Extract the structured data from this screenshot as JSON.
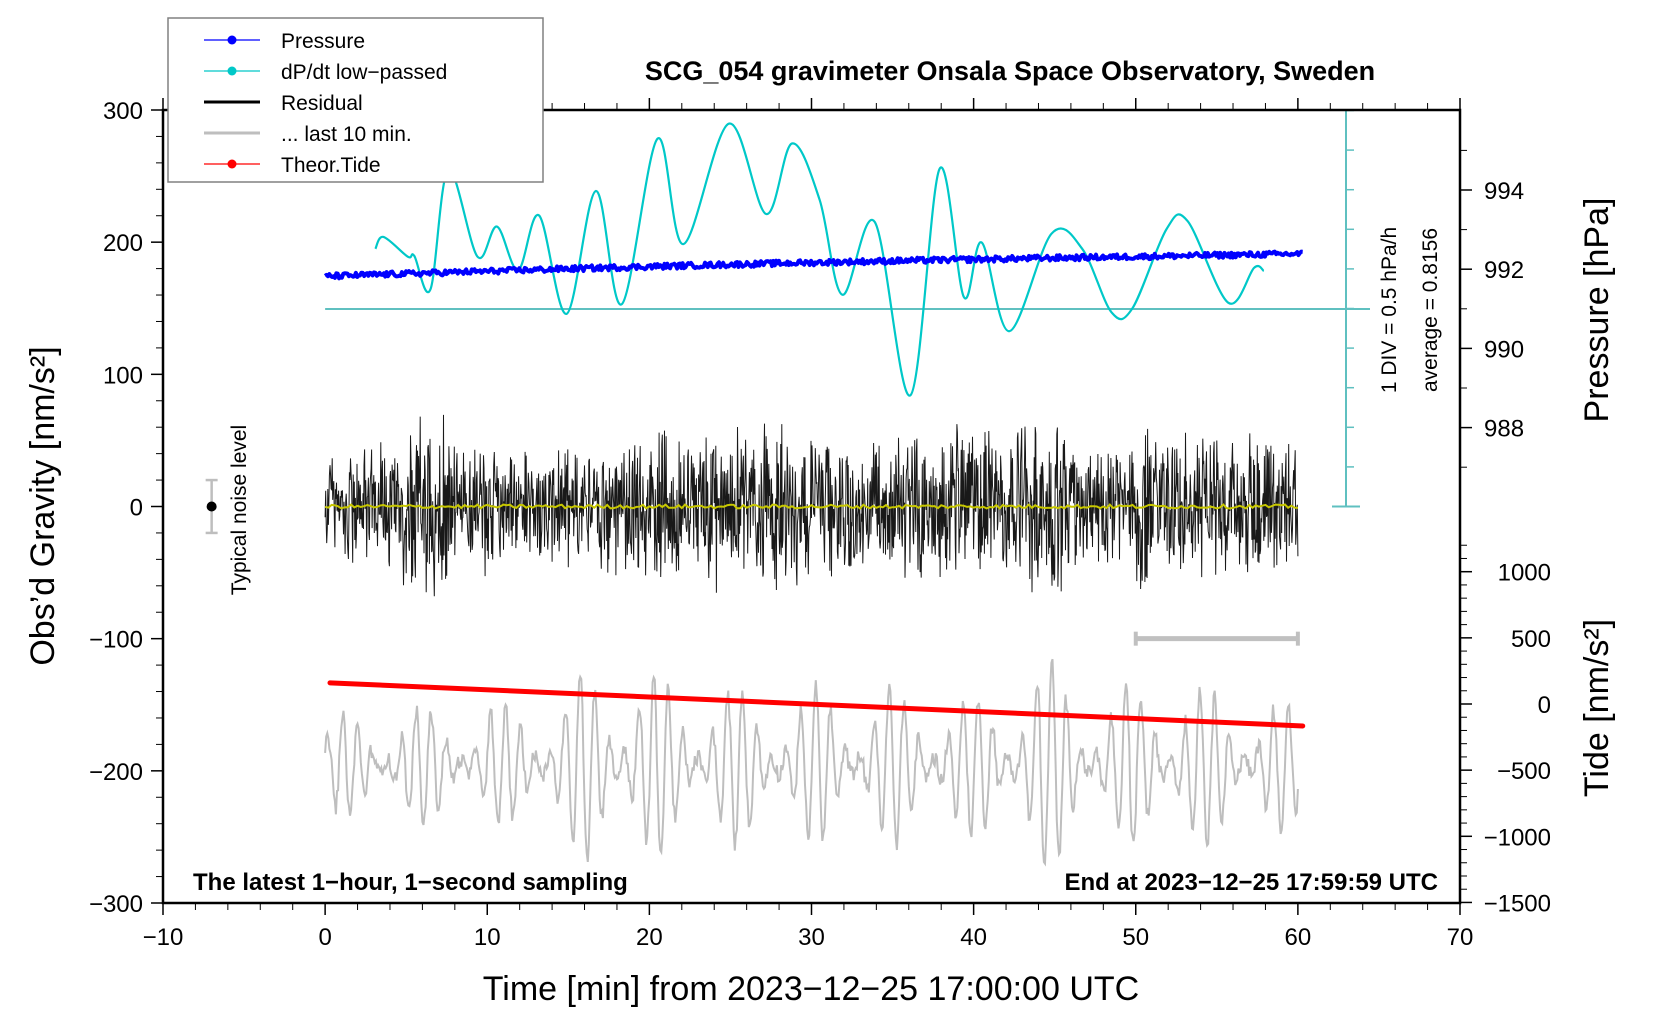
{
  "chart_data": {
    "type": "line",
    "title": "SCG_054 gravimeter Onsala Space Observatory, Sweden",
    "xlabel": "Time [min] from 2023−12−25 17:00:00 UTC",
    "ylabel_left": "Obs’d Gravity [nm/s²]",
    "ylabel_right_top": "Pressure [hPa]",
    "ylabel_right_bottom": "Tide [nm/s²]",
    "xlim": [
      -10,
      70
    ],
    "ylim_left": [
      -300,
      300
    ],
    "x_ticks": [
      -10,
      0,
      10,
      20,
      30,
      40,
      50,
      60,
      70
    ],
    "x_tick_labels": [
      "−10",
      "0",
      "10",
      "20",
      "30",
      "40",
      "50",
      "60",
      "70"
    ],
    "y_left_ticks": [
      300,
      200,
      100,
      0,
      -100,
      -200,
      -300
    ],
    "y_left_tick_labels": [
      "300",
      "200",
      "100",
      "0",
      "−100",
      "−200",
      "−300"
    ],
    "pressure_ticks": [
      994,
      992,
      990,
      988
    ],
    "pressure_tick_labels": [
      "994",
      "992",
      "990",
      "988"
    ],
    "tide_ticks": [
      1000,
      500,
      0,
      -500,
      -1000,
      -1500
    ],
    "tide_tick_labels": [
      "1000",
      "500",
      "0",
      "−500",
      "−1000",
      "−1500"
    ],
    "legend": {
      "placement": "top-left",
      "entries": [
        {
          "label": "Pressure",
          "color": "#0000ff",
          "marker": true
        },
        {
          "label": "dP/dt low−passed",
          "color": "#00c8c8",
          "marker": true
        },
        {
          "label": "Residual",
          "color": "#000000",
          "marker": false
        },
        {
          "label": "... last 10 min.",
          "color": "#bebebe",
          "marker": false
        },
        {
          "label": "Theor.Tide",
          "color": "#ff0000",
          "marker": true
        }
      ]
    },
    "annotations": {
      "noise_label": "Typical noise level",
      "noise_level": {
        "x": -7,
        "center": 0,
        "half_range": 20
      },
      "dpdt_scale": "1 DIV = 0.5 hPa/h",
      "dpdt_average": "average = 0.8156",
      "bottom_left_note": "The latest 1−hour, 1−second sampling",
      "bottom_right_note": "End at 2023−12−25 17:59:59 UTC",
      "last10_bracket": {
        "x_start": 50,
        "x_end": 60,
        "y": -100
      }
    },
    "series": [
      {
        "name": "Pressure",
        "units": "hPa",
        "color": "#0000ff",
        "x_range": [
          0,
          60.3
        ],
        "start": 991.82,
        "end": 992.42,
        "noise": 0.07
      },
      {
        "name": "dP/dt low-passed",
        "units": "hPa/h",
        "color": "#00c8c8",
        "scale_per_div": 0.5,
        "x": [
          3.1,
          3.6,
          5.1,
          5.5,
          6.5,
          7.6,
          9.4,
          10.6,
          11.9,
          13.2,
          14.9,
          16.7,
          18.3,
          20.5,
          22.1,
          24.9,
          27.2,
          28.8,
          30.5,
          31.9,
          33.9,
          36.1,
          37.9,
          39.4,
          40.5,
          42.2,
          44.8,
          46.7,
          48.5,
          49.8,
          51.9,
          53.2,
          55.7,
          57.3,
          57.9
        ],
        "y": [
          0.76,
          0.91,
          0.66,
          0.67,
          0.25,
          1.76,
          0.66,
          1.04,
          0.49,
          1.18,
          -0.06,
          1.49,
          0.06,
          2.15,
          0.82,
          2.34,
          1.2,
          2.09,
          1.38,
          0.18,
          1.1,
          -1.09,
          1.77,
          0.15,
          0.84,
          -0.28,
          0.95,
          0.76,
          -0.04,
          0.01,
          1.01,
          1.11,
          0.08,
          0.52,
          0.48
        ]
      },
      {
        "name": "Residual",
        "units": "nm/s²",
        "color": "#000000",
        "x_range": [
          0,
          60
        ],
        "envelope_x": [
          0,
          2,
          4,
          5.5,
          6.5,
          7,
          7.6,
          8.5,
          10,
          12,
          14,
          16,
          17,
          19,
          20.5,
          22,
          24,
          26,
          28,
          30,
          32,
          34,
          36,
          38,
          40,
          42,
          44,
          46,
          48,
          50,
          52,
          54,
          56,
          58,
          60
        ],
        "envelope_amp": [
          45,
          55,
          60,
          70,
          95,
          90,
          80,
          55,
          55,
          45,
          55,
          45,
          55,
          60,
          70,
          60,
          75,
          65,
          75,
          60,
          60,
          55,
          65,
          60,
          75,
          55,
          80,
          70,
          55,
          70,
          65,
          65,
          60,
          65,
          55
        ]
      },
      {
        "name": "Residual smoothed",
        "units": "nm/s²",
        "color": "#c8c800",
        "x_range": [
          0,
          60
        ],
        "level": 0
      },
      {
        "name": "... last 10 min.",
        "units": "nm/s²",
        "color": "#bebebe",
        "x_range": [
          0,
          60
        ],
        "center": -196,
        "envelope_x": [
          0,
          5,
          10,
          15,
          17,
          20,
          25,
          30,
          35,
          40,
          43,
          45,
          48,
          52,
          55,
          58,
          60
        ],
        "envelope_amp": [
          35,
          45,
          45,
          60,
          85,
          70,
          60,
          60,
          60,
          50,
          80,
          80,
          55,
          75,
          55,
          55,
          40
        ]
      },
      {
        "name": "Theor.Tide",
        "units": "nm/s² (tide axis)",
        "color": "#ff0000",
        "x_range": [
          0.3,
          60.3
        ],
        "start": 160,
        "end": -166
      }
    ]
  }
}
